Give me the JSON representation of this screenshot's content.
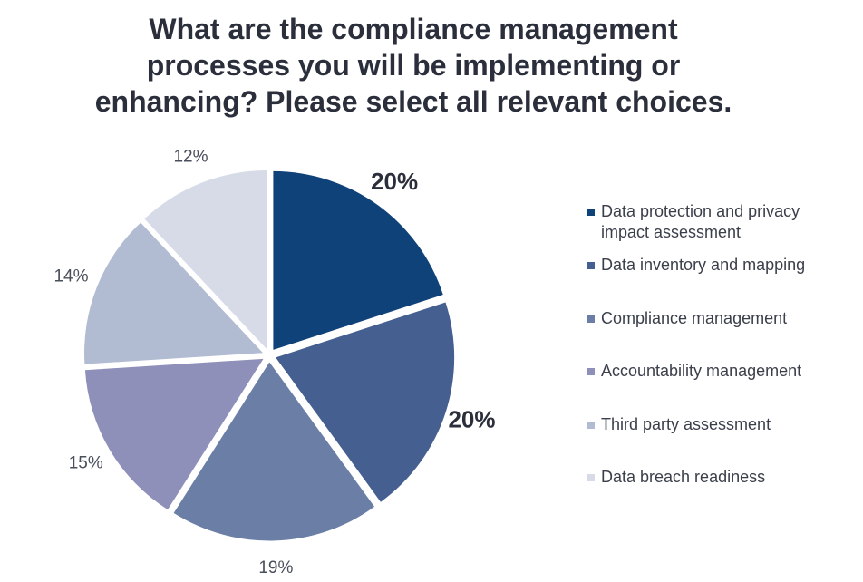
{
  "chart_data": {
    "type": "pie",
    "title_lines": [
      "What are the compliance management",
      "processes you will  be implementing or",
      "enhancing? Please select all relevant choices."
    ],
    "slices": [
      {
        "label": "Data protection and privacy impact assessment",
        "label_lines": [
          "Data protection and privacy",
          "impact assessment"
        ],
        "value": 20,
        "display": "20%",
        "color": "#10427a",
        "bold": true
      },
      {
        "label": "Data inventory and mapping",
        "label_lines": [
          "Data inventory and mapping"
        ],
        "value": 20,
        "display": "20%",
        "color": "#445f90",
        "bold": true
      },
      {
        "label": "Compliance management",
        "label_lines": [
          "Compliance management"
        ],
        "value": 19,
        "display": "19%",
        "color": "#6a7ea6",
        "bold": false
      },
      {
        "label": "Accountability management",
        "label_lines": [
          "Accountability management"
        ],
        "value": 15,
        "display": "15%",
        "color": "#8e90b9",
        "bold": false
      },
      {
        "label": "Third party assessment",
        "label_lines": [
          "Third party assessment"
        ],
        "value": 14,
        "display": "14%",
        "color": "#b1bbd1",
        "bold": false
      },
      {
        "label": "Data breach readiness",
        "label_lines": [
          "Data breach readiness"
        ],
        "value": 12,
        "display": "12%",
        "color": "#d7dbe8",
        "bold": false
      }
    ],
    "legend_position": "right"
  }
}
